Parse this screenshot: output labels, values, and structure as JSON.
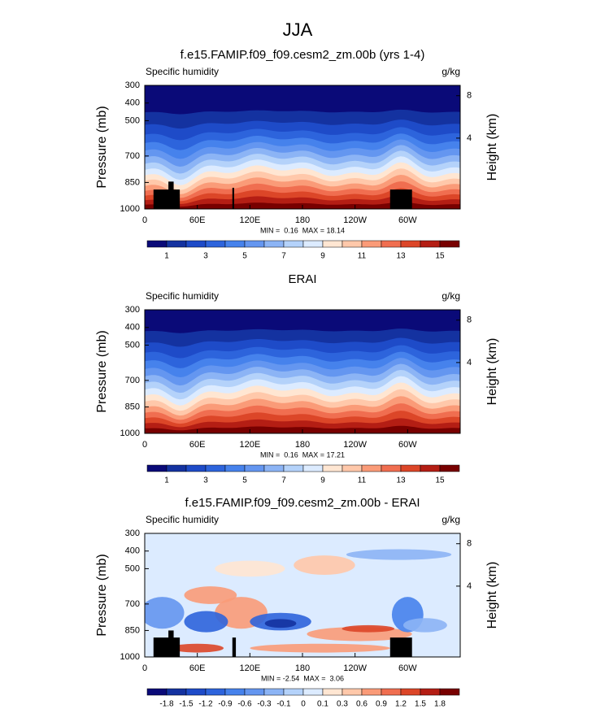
{
  "title": "JJA",
  "chart_data": [
    {
      "type": "contour",
      "title": "f.e15.FAMIP.f09_f09.cesm2_zm.00b (yrs 1-4)",
      "left_label": "Specific humidity",
      "right_label": "g/kg",
      "ylabel": "Pressure (mb)",
      "y2label": "Height (km)",
      "ylim": [
        1000,
        300
      ],
      "yticks": [
        300,
        400,
        500,
        700,
        850,
        1000
      ],
      "y2ticks": [
        8,
        4
      ],
      "xlim": [
        0,
        360
      ],
      "xticks": [
        0,
        {
          "value": 60,
          "label": "60E"
        },
        {
          "value": 120,
          "label": "120E"
        },
        180,
        {
          "value": 240,
          "label": "120W"
        },
        {
          "value": 300,
          "label": "60W"
        }
      ],
      "stats": "MIN =  0.16  MAX = 18.14",
      "colorbar": {
        "colors": [
          "#0a0a78",
          "#1432a0",
          "#1e4bc8",
          "#2d64dc",
          "#4682ec",
          "#6496f0",
          "#8cb4f5",
          "#b4d2fa",
          "#dcebff",
          "#ffe6d2",
          "#ffc8aa",
          "#fa9b78",
          "#f06e50",
          "#dc4628",
          "#b41e14",
          "#780000"
        ],
        "labels": [
          1,
          3,
          5,
          7,
          9,
          11,
          13,
          15
        ]
      }
    },
    {
      "type": "contour",
      "title": "ERAI",
      "left_label": "Specific humidity",
      "right_label": "g/kg",
      "ylabel": "Pressure (mb)",
      "y2label": "Height (km)",
      "ylim": [
        1000,
        300
      ],
      "yticks": [
        300,
        400,
        500,
        700,
        850,
        1000
      ],
      "y2ticks": [
        8,
        4
      ],
      "xlim": [
        0,
        360
      ],
      "xticks": [
        0,
        {
          "value": 60,
          "label": "60E"
        },
        {
          "value": 120,
          "label": "120E"
        },
        180,
        {
          "value": 240,
          "label": "120W"
        },
        {
          "value": 300,
          "label": "60W"
        }
      ],
      "stats": "MIN =  0.16  MAX = 17.21",
      "colorbar": {
        "colors": [
          "#0a0a78",
          "#1432a0",
          "#1e4bc8",
          "#2d64dc",
          "#4682ec",
          "#6496f0",
          "#8cb4f5",
          "#b4d2fa",
          "#dcebff",
          "#ffe6d2",
          "#ffc8aa",
          "#fa9b78",
          "#f06e50",
          "#dc4628",
          "#b41e14",
          "#780000"
        ],
        "labels": [
          1,
          3,
          5,
          7,
          9,
          11,
          13,
          15
        ]
      }
    },
    {
      "type": "contour-diff",
      "title": "f.e15.FAMIP.f09_f09.cesm2_zm.00b - ERAI",
      "left_label": "Specific humidity",
      "right_label": "g/kg",
      "ylabel": "Pressure (mb)",
      "y2label": "Height (km)",
      "ylim": [
        1000,
        300
      ],
      "yticks": [
        300,
        400,
        500,
        700,
        850,
        1000
      ],
      "y2ticks": [
        8,
        4
      ],
      "xlim": [
        0,
        360
      ],
      "xticks": [
        0,
        {
          "value": 60,
          "label": "60E"
        },
        {
          "value": 120,
          "label": "120E"
        },
        180,
        {
          "value": 240,
          "label": "120W"
        },
        {
          "value": 300,
          "label": "60W"
        }
      ],
      "stats": "MIN = -2.54  MAX =  3.06",
      "colorbar": {
        "colors": [
          "#0a0a78",
          "#1432a0",
          "#1e4bc8",
          "#2d64dc",
          "#4682ec",
          "#6496f0",
          "#8cb4f5",
          "#b4d2fa",
          "#dcebff",
          "#ffe6d2",
          "#ffc8aa",
          "#fa9b78",
          "#f06e50",
          "#dc4628",
          "#b41e14",
          "#780000"
        ],
        "labels": [
          -1.8,
          -1.5,
          -1.2,
          -0.9,
          -0.6,
          -0.3,
          -0.1,
          0,
          0.1,
          0.3,
          0.6,
          0.9,
          1.2,
          1.5,
          1.8
        ]
      }
    }
  ]
}
